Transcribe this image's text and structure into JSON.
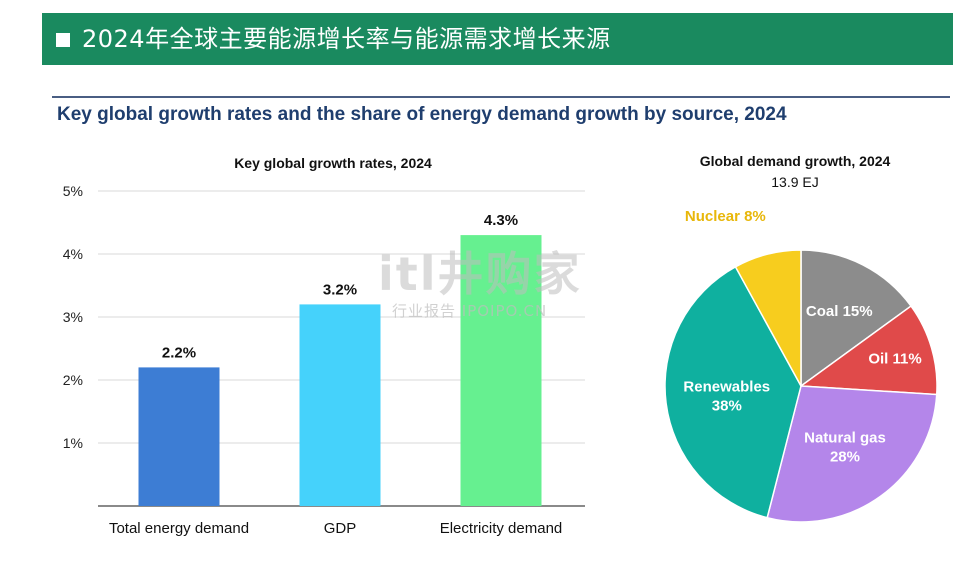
{
  "banner": {
    "title": "2024年全球主要能源增长率与能源需求增长来源"
  },
  "main_title": "Key global growth rates and the share of energy demand growth by source, 2024",
  "watermark": {
    "text": "itl井购家",
    "sub": "行业报告 IPOIPO.CN"
  },
  "colors": {
    "banner": "#1a8a5f",
    "title": "#1f3e6e",
    "total_energy_demand": "#3d7dd4",
    "gdp": "#45d2fb",
    "electricity_demand": "#66f090",
    "coal": "#8c8c8c",
    "oil": "#e04a4a",
    "natural_gas": "#b486ea",
    "renewables": "#0fb09f",
    "nuclear": "#f7cd1e"
  },
  "chart_data": [
    {
      "type": "bar",
      "title": "Key global growth rates, 2024",
      "categories": [
        "Total energy demand",
        "GDP",
        "Electricity demand"
      ],
      "values": [
        2.2,
        3.2,
        4.3
      ],
      "data_labels": [
        "2.2%",
        "3.2%",
        "4.3%"
      ],
      "ylim": [
        0,
        5
      ],
      "yticks": [
        "1%",
        "2%",
        "3%",
        "4%",
        "5%"
      ],
      "ytick_values": [
        1,
        2,
        3,
        4,
        5
      ],
      "grid": true
    },
    {
      "type": "pie",
      "title": "Global demand growth, 2024",
      "subtitle": "13.9 EJ",
      "slices": [
        {
          "label": "Coal 15%",
          "value": 15,
          "color": "#8c8c8c"
        },
        {
          "label": "Oil 11%",
          "value": 11,
          "color": "#e04a4a"
        },
        {
          "label": "Natural gas 28%",
          "value": 28,
          "color": "#b486ea"
        },
        {
          "label": "Renewables 38%",
          "value": 38,
          "color": "#0fb09f"
        },
        {
          "label": "Nuclear 8%",
          "value": 8,
          "color": "#f7cd1e"
        }
      ]
    }
  ]
}
